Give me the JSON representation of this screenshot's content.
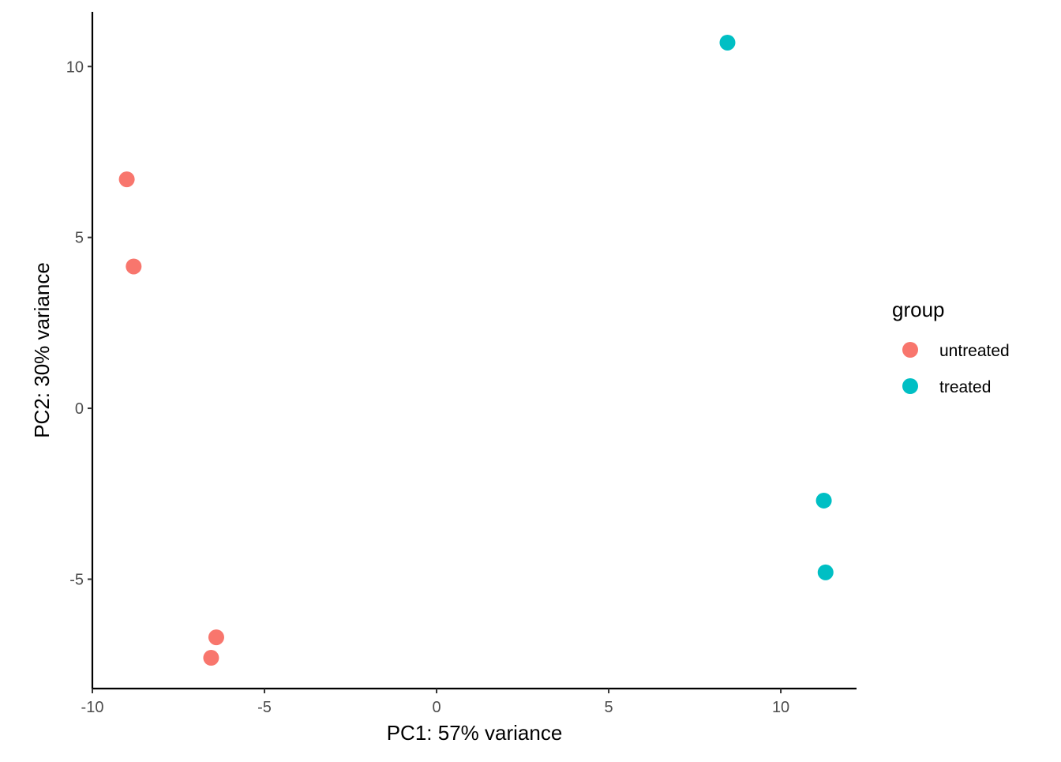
{
  "chart_data": {
    "type": "scatter",
    "title": "",
    "xlabel": "PC1: 57% variance",
    "ylabel": "PC2: 30% variance",
    "xlim": [
      -10,
      12.2
    ],
    "ylim": [
      -8.2,
      11.6
    ],
    "xticks": [
      -10,
      -5,
      0,
      5,
      10
    ],
    "xtick_labels": [
      "-10",
      "-5",
      "0",
      "5",
      "10"
    ],
    "yticks": [
      -5,
      0,
      5,
      10
    ],
    "ytick_labels": [
      "-5",
      "0",
      "5",
      "10"
    ],
    "grid": false,
    "legend": {
      "title": "group",
      "placement": "right"
    },
    "series": [
      {
        "name": "untreated",
        "color": "#F8766D",
        "points": [
          {
            "x": -9.0,
            "y": 6.7
          },
          {
            "x": -8.8,
            "y": 4.15
          },
          {
            "x": -6.4,
            "y": -6.7
          },
          {
            "x": -6.55,
            "y": -7.3
          }
        ]
      },
      {
        "name": "treated",
        "color": "#00BFC4",
        "points": [
          {
            "x": 8.45,
            "y": 10.7
          },
          {
            "x": 11.25,
            "y": -2.7
          },
          {
            "x": 11.3,
            "y": -4.8
          }
        ]
      }
    ]
  }
}
